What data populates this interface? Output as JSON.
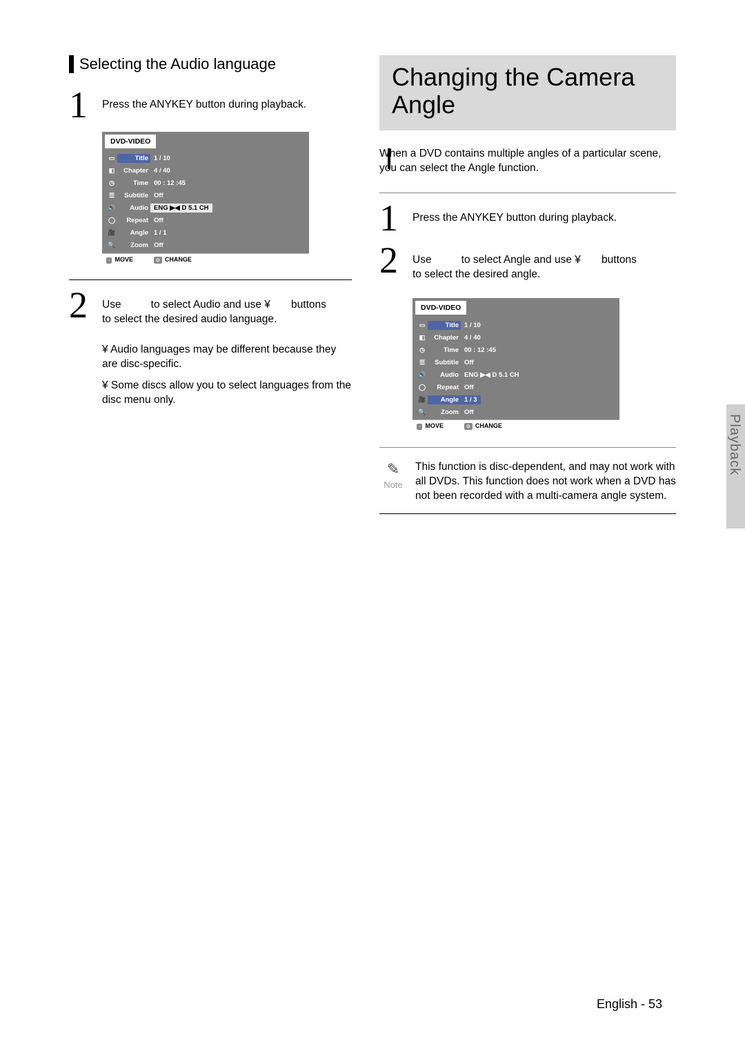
{
  "left": {
    "heading": "Selecting the Audio language",
    "step1": {
      "num": "1",
      "text": "Press the ANYKEY button during playback."
    },
    "step2": {
      "num": "2",
      "line1a": "Use",
      "line1b": "to select Audio and use  ¥",
      "line1c": "buttons",
      "line2": "to select the desired audio language.",
      "bullet1": "¥ Audio languages may be different because they are disc-specific.",
      "bullet2": "¥ Some discs allow you to select languages from the disc menu only."
    }
  },
  "right": {
    "title": "Changing the Camera Angle",
    "intro": "When a DVD contains multiple angles of a particular scene, you can select the Angle function.",
    "step1": {
      "num": "1",
      "text": "Press the ANYKEY button during playback."
    },
    "step2": {
      "num": "2",
      "line1a": "Use",
      "line1b": "to select Angle and use  ¥",
      "line1c": "buttons",
      "line2": "to select the desired angle."
    },
    "note_label": "Note",
    "note_text": "This function is disc-dependent, and may not work with all DVDs. This function does not work when a DVD has not been recorded with a multi-camera angle system."
  },
  "osd_left": {
    "header": "DVD-VIDEO",
    "rows": [
      {
        "icon": "▭",
        "label": "Title",
        "value": "1 / 10",
        "hl": "blue"
      },
      {
        "icon": "◧",
        "label": "Chapter",
        "value": "4 / 40",
        "hl": ""
      },
      {
        "icon": "◷",
        "label": "Time",
        "value": "00 : 12 :45",
        "hl": ""
      },
      {
        "icon": "☰",
        "label": "Subtitle",
        "value": "Off",
        "hl": ""
      },
      {
        "icon": "🔊",
        "label": "Audio",
        "value": "ENG ▶◀ D 5.1 CH",
        "hl": "audio"
      },
      {
        "icon": "◯",
        "label": "Repeat",
        "value": "Off",
        "hl": ""
      },
      {
        "icon": "🎥",
        "label": "Angle",
        "value": "1 / 1",
        "hl": ""
      },
      {
        "icon": "🔍",
        "label": "Zoom",
        "value": "Off",
        "hl": ""
      }
    ],
    "footer_move_btn": "◦",
    "footer_move": "MOVE",
    "footer_change_btn": "⊙",
    "footer_change": "CHANGE"
  },
  "osd_right": {
    "header": "DVD-VIDEO",
    "rows": [
      {
        "icon": "▭",
        "label": "Title",
        "value": "1 / 10",
        "hl": "blue"
      },
      {
        "icon": "◧",
        "label": "Chapter",
        "value": "4 / 40",
        "hl": ""
      },
      {
        "icon": "◷",
        "label": "Time",
        "value": "00 : 12 :45",
        "hl": ""
      },
      {
        "icon": "☰",
        "label": "Subtitle",
        "value": "Off",
        "hl": ""
      },
      {
        "icon": "🔊",
        "label": "Audio",
        "value": "ENG ▶◀ D 5.1 CH",
        "hl": ""
      },
      {
        "icon": "◯",
        "label": "Repeat",
        "value": "Off",
        "hl": ""
      },
      {
        "icon": "🎥",
        "label": "Angle",
        "value": "1 / 3",
        "hl": "angle"
      },
      {
        "icon": "🔍",
        "label": "Zoom",
        "value": "Off",
        "hl": ""
      }
    ],
    "footer_move_btn": "◦",
    "footer_move": "MOVE",
    "footer_change_btn": "⊙",
    "footer_change": "CHANGE"
  },
  "side_tab": "Playback",
  "footer": "English - 53",
  "colors": {
    "page_bg": "#ffffff",
    "osd_bg": "#808080",
    "osd_highlight": "#5065a5",
    "title_box_bg": "#d9d9d9",
    "side_tab_bg": "#d0d0d0",
    "side_tab_text": "#6a6a6a"
  }
}
